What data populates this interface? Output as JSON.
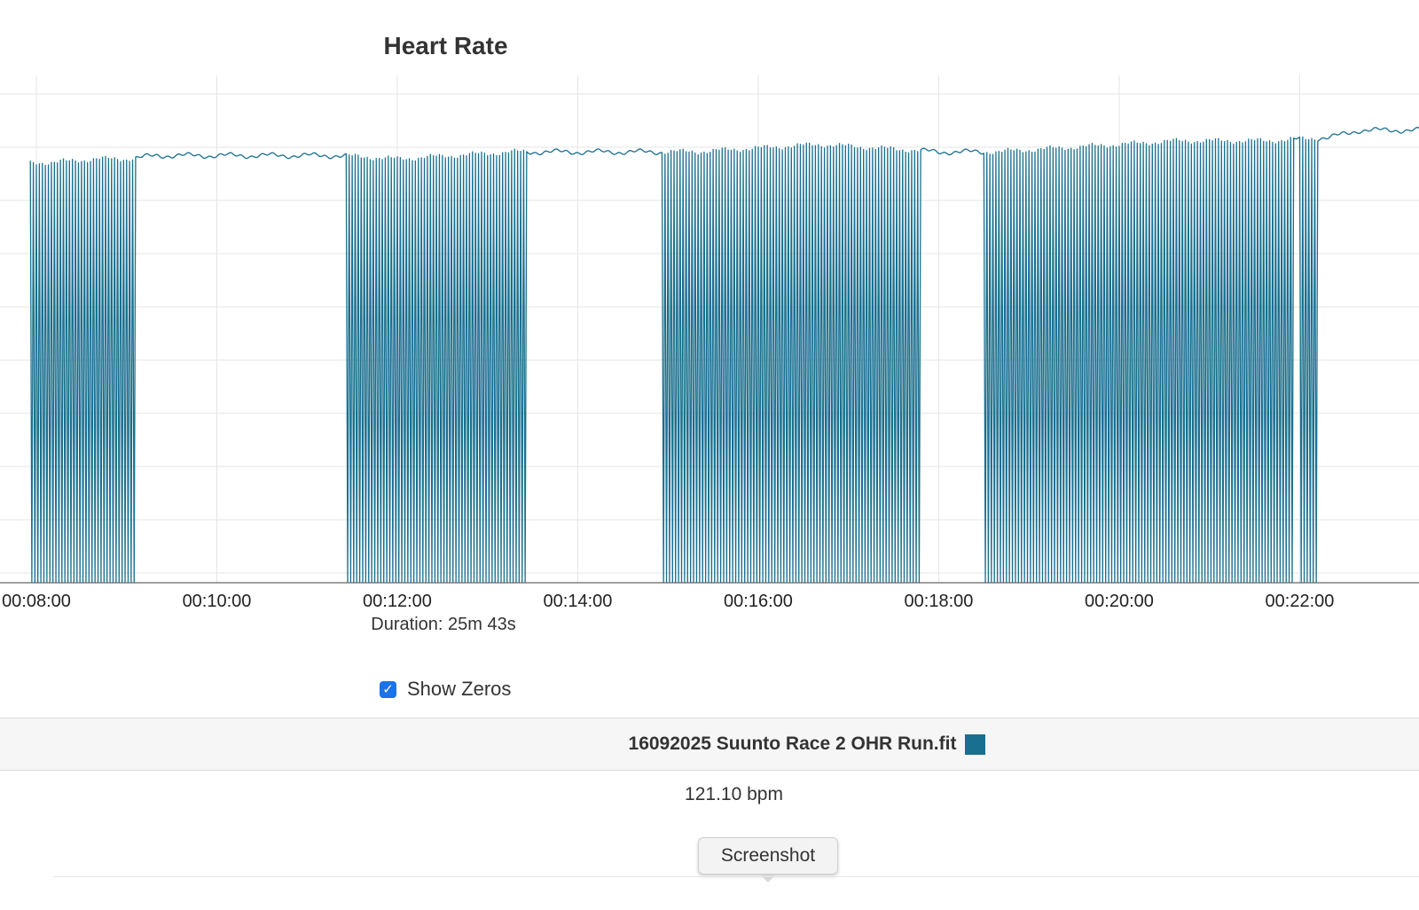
{
  "chart_data": {
    "type": "line",
    "title": "Heart Rate",
    "x_ticks": [
      "00:08:00",
      "00:10:00",
      "00:12:00",
      "00:14:00",
      "00:16:00",
      "00:18:00",
      "00:20:00",
      "00:22:00"
    ],
    "xlim": [
      "00:07:56",
      "00:23:20"
    ],
    "ylim": [
      0,
      135
    ],
    "grid": true,
    "series": [
      {
        "name": "16092025 Suunto Race 2 OHR Run.fit",
        "color": "#196f8f",
        "values": [
          {
            "t": "00:07:56",
            "bpm": 116
          },
          {
            "t": "00:08:10",
            "bpm": 116
          },
          {
            "t": "00:08:40",
            "bpm": 117
          },
          {
            "t": "00:09:00",
            "bpm": 117
          },
          {
            "t": "00:09:20",
            "bpm": 118
          },
          {
            "t": "00:10:00",
            "bpm": 118
          },
          {
            "t": "00:10:40",
            "bpm": 118
          },
          {
            "t": "00:11:20",
            "bpm": 118
          },
          {
            "t": "00:12:00",
            "bpm": 117
          },
          {
            "t": "00:12:40",
            "bpm": 118
          },
          {
            "t": "00:13:20",
            "bpm": 119
          },
          {
            "t": "00:14:00",
            "bpm": 119
          },
          {
            "t": "00:14:40",
            "bpm": 119
          },
          {
            "t": "00:15:20",
            "bpm": 119
          },
          {
            "t": "00:16:00",
            "bpm": 120
          },
          {
            "t": "00:16:40",
            "bpm": 121
          },
          {
            "t": "00:17:20",
            "bpm": 120
          },
          {
            "t": "00:18:00",
            "bpm": 119
          },
          {
            "t": "00:18:40",
            "bpm": 119
          },
          {
            "t": "00:19:20",
            "bpm": 120
          },
          {
            "t": "00:20:00",
            "bpm": 121
          },
          {
            "t": "00:20:40",
            "bpm": 122
          },
          {
            "t": "00:21:20",
            "bpm": 122
          },
          {
            "t": "00:21:40",
            "bpm": 122
          },
          {
            "t": "00:22:20",
            "bpm": 123
          },
          {
            "t": "00:22:40",
            "bpm": 125
          },
          {
            "t": "00:23:20",
            "bpm": 125
          }
        ],
        "zero_dropout_segments": [
          [
            "00:07:56",
            "00:09:06"
          ],
          [
            "00:11:27",
            "00:13:25"
          ],
          [
            "00:14:57",
            "00:17:48"
          ],
          [
            "00:18:30",
            "00:21:55"
          ],
          [
            "00:22:00",
            "00:22:12"
          ]
        ]
      }
    ],
    "footer": "Duration: 25m 43s"
  },
  "controls": {
    "show_zeros_label": "Show Zeros",
    "show_zeros_checked": true
  },
  "legend": {
    "file": "16092025 Suunto Race 2 OHR Run.fit",
    "value": "121.10 bpm",
    "swatch_color": "#196f8f"
  },
  "actions": {
    "screenshot_label": "Screenshot"
  }
}
